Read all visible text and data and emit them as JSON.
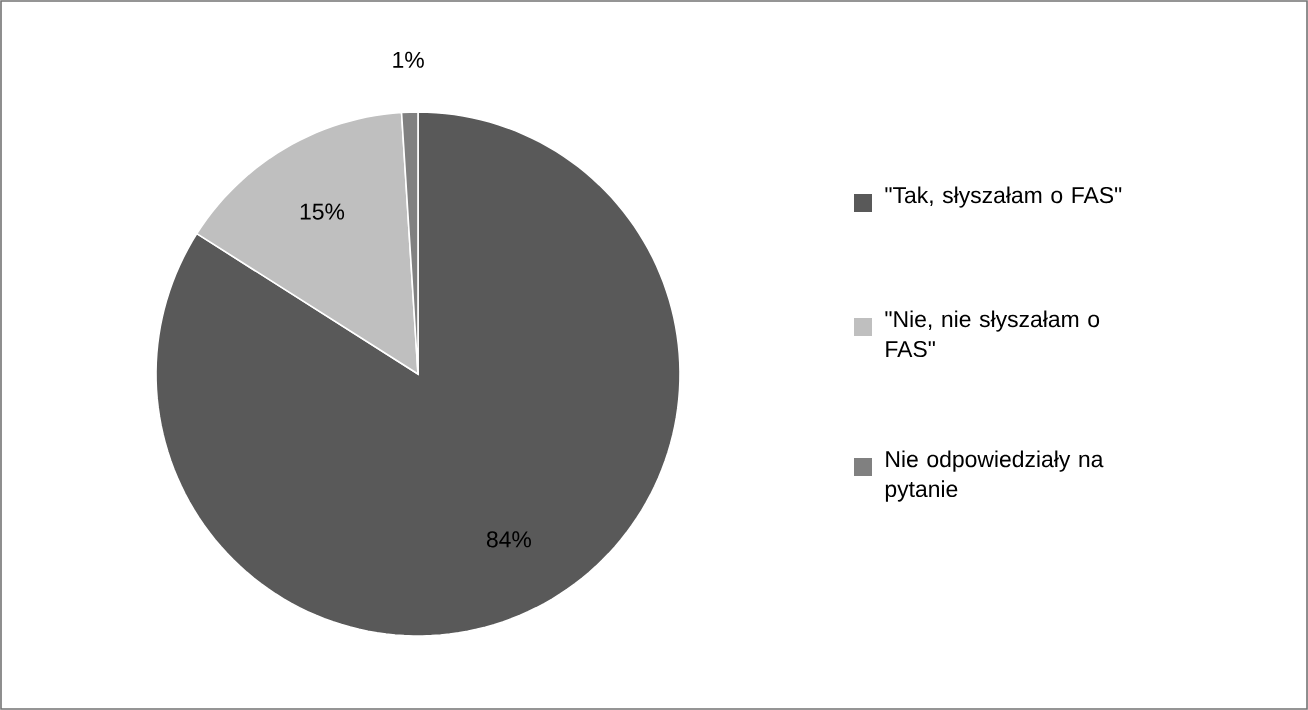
{
  "chart_data": {
    "type": "pie",
    "categories": [
      "\"Tak, słyszałam o FAS\"",
      "\"Nie, nie słyszałam o FAS\"",
      "Nie odpowiedziały na pytanie"
    ],
    "values": [
      84,
      15,
      1
    ],
    "colors": [
      "#595959",
      "#bfbfbf",
      "#808080"
    ],
    "value_labels": [
      "84%",
      "15%",
      "1%"
    ],
    "legend": "right"
  }
}
